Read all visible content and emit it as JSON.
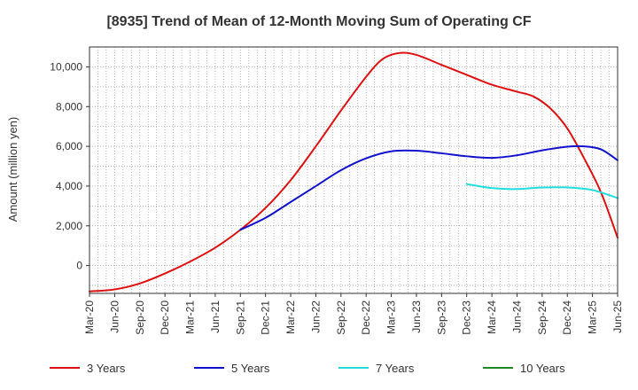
{
  "chart_data": {
    "type": "line",
    "title": "[8935]  Trend of Mean of 12-Month Moving Sum of Operating CF",
    "xlabel": "",
    "ylabel": "Amount (million yen)",
    "ylim": [
      -1400,
      11000
    ],
    "yticks": [
      0,
      2000,
      4000,
      6000,
      8000,
      10000
    ],
    "ytick_labels": [
      "0",
      "2,000",
      "4,000",
      "6,000",
      "8,000",
      "10,000"
    ],
    "x_domain": [
      0,
      63
    ],
    "x_tick_labels": [
      "Mar-20",
      "Jun-20",
      "Sep-20",
      "Dec-20",
      "Mar-21",
      "Jun-21",
      "Sep-21",
      "Dec-21",
      "Mar-22",
      "Jun-22",
      "Sep-22",
      "Dec-22",
      "Mar-23",
      "Jun-23",
      "Sep-23",
      "Dec-23",
      "Mar-24",
      "Jun-24",
      "Sep-24",
      "Dec-24",
      "Mar-25",
      "Jun-25"
    ],
    "grid": true,
    "legend_position": "bottom",
    "series": [
      {
        "name": "3 Years",
        "color": "#dd1111",
        "points": [
          [
            0,
            -1300
          ],
          [
            3,
            -1200
          ],
          [
            6,
            -900
          ],
          [
            9,
            -400
          ],
          [
            12,
            200
          ],
          [
            15,
            900
          ],
          [
            18,
            1800
          ],
          [
            21,
            2900
          ],
          [
            24,
            4300
          ],
          [
            27,
            6000
          ],
          [
            30,
            7800
          ],
          [
            33,
            9500
          ],
          [
            35,
            10400
          ],
          [
            37,
            10700
          ],
          [
            39,
            10600
          ],
          [
            42,
            10100
          ],
          [
            45,
            9600
          ],
          [
            48,
            9100
          ],
          [
            51,
            8750
          ],
          [
            53,
            8500
          ],
          [
            55,
            7900
          ],
          [
            57,
            6900
          ],
          [
            59,
            5400
          ],
          [
            61,
            3700
          ],
          [
            63,
            1400
          ]
        ]
      },
      {
        "name": "5 Years",
        "color": "#1111cc",
        "points": [
          [
            18,
            1800
          ],
          [
            21,
            2400
          ],
          [
            24,
            3200
          ],
          [
            27,
            4000
          ],
          [
            30,
            4800
          ],
          [
            33,
            5400
          ],
          [
            36,
            5750
          ],
          [
            39,
            5780
          ],
          [
            42,
            5650
          ],
          [
            45,
            5500
          ],
          [
            48,
            5420
          ],
          [
            51,
            5550
          ],
          [
            54,
            5800
          ],
          [
            57,
            5980
          ],
          [
            59,
            6000
          ],
          [
            61,
            5850
          ],
          [
            63,
            5300
          ]
        ]
      },
      {
        "name": "7 Years",
        "color": "#22dddd",
        "points": [
          [
            45,
            4100
          ],
          [
            48,
            3900
          ],
          [
            51,
            3850
          ],
          [
            54,
            3930
          ],
          [
            57,
            3930
          ],
          [
            60,
            3800
          ],
          [
            63,
            3400
          ]
        ]
      },
      {
        "name": "10 Years",
        "color": "#228822",
        "points": []
      }
    ]
  }
}
